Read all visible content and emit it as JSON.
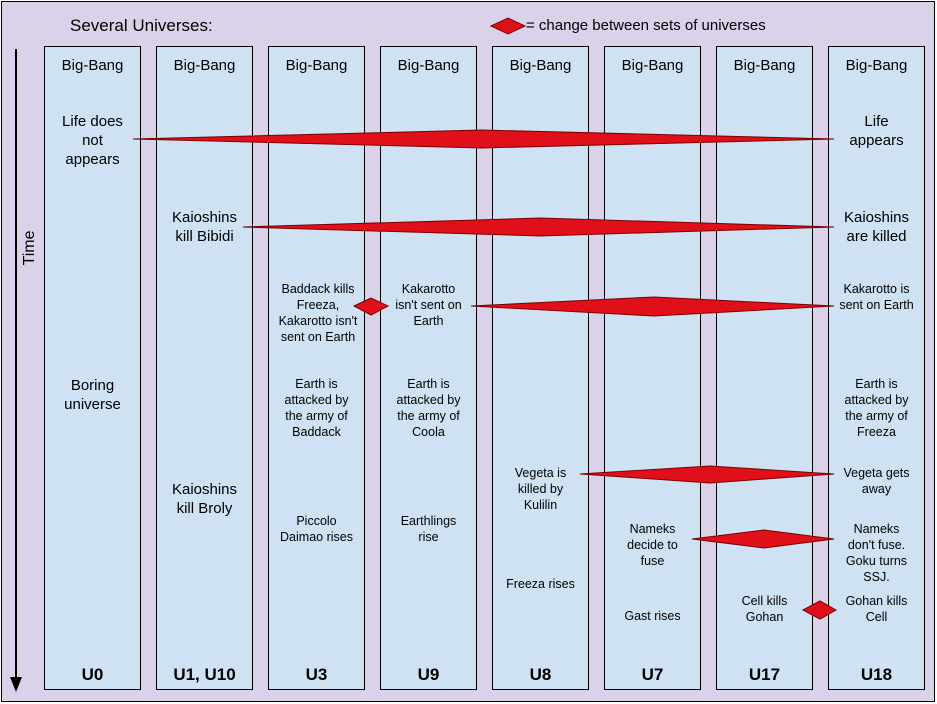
{
  "title": "Several Universes:",
  "legend": {
    "text": "= change between sets of universes",
    "marker_color": "#e0101a"
  },
  "axis": {
    "label": "Time"
  },
  "colors": {
    "background": "#d9d2e9",
    "column": "#cfe2f3",
    "diamond": "#e0101a"
  },
  "columns": [
    {
      "label": "U0",
      "top": "Big-Bang",
      "events": {
        "life": "Life does\nnot\nappears",
        "mid": "Boring\nuniverse"
      }
    },
    {
      "label": "U1, U10",
      "top": "Big-Bang",
      "events": {
        "kaioshins": "Kaioshins\nkill Bibidi",
        "broly": "Kaioshins\nkill Broly"
      }
    },
    {
      "label": "U3",
      "top": "Big-Bang",
      "events": {
        "kakarotto": "Baddack kills\nFreeza,\nKakarotto isn't\nsent on Earth",
        "earth": "Earth is\nattacked by\nthe army of\nBaddack",
        "rise": "Piccolo\nDaimao rises"
      }
    },
    {
      "label": "U9",
      "top": "Big-Bang",
      "events": {
        "kakarotto": "Kakarotto\nisn't sent on\nEarth",
        "earth": "Earth is\nattacked by\nthe army of\nCoola",
        "rise": "Earthlings\nrise"
      }
    },
    {
      "label": "U8",
      "top": "Big-Bang",
      "events": {
        "vegeta": "Vegeta is\nkilled by\nKulilin",
        "freeza": "Freeza rises"
      }
    },
    {
      "label": "U7",
      "top": "Big-Bang",
      "events": {
        "nameks": "Nameks\ndecide to\nfuse",
        "gast": "Gast rises"
      }
    },
    {
      "label": "U17",
      "top": "Big-Bang",
      "events": {
        "cell": "Cell kills\nGohan"
      }
    },
    {
      "label": "U18",
      "top": "Big-Bang",
      "events": {
        "life": "Life\nappears",
        "kaioshins": "Kaioshins\nare killed",
        "kakarotto": "Kakarotto is\nsent on Earth",
        "earth": "Earth is\nattacked by\nthe army of\nFreeza",
        "vegeta": "Vegeta gets\naway",
        "nameks": "Nameks\ndon't fuse.\nGoku turns\nSSJ.",
        "cell": "Gohan kills\nCell"
      }
    }
  ]
}
